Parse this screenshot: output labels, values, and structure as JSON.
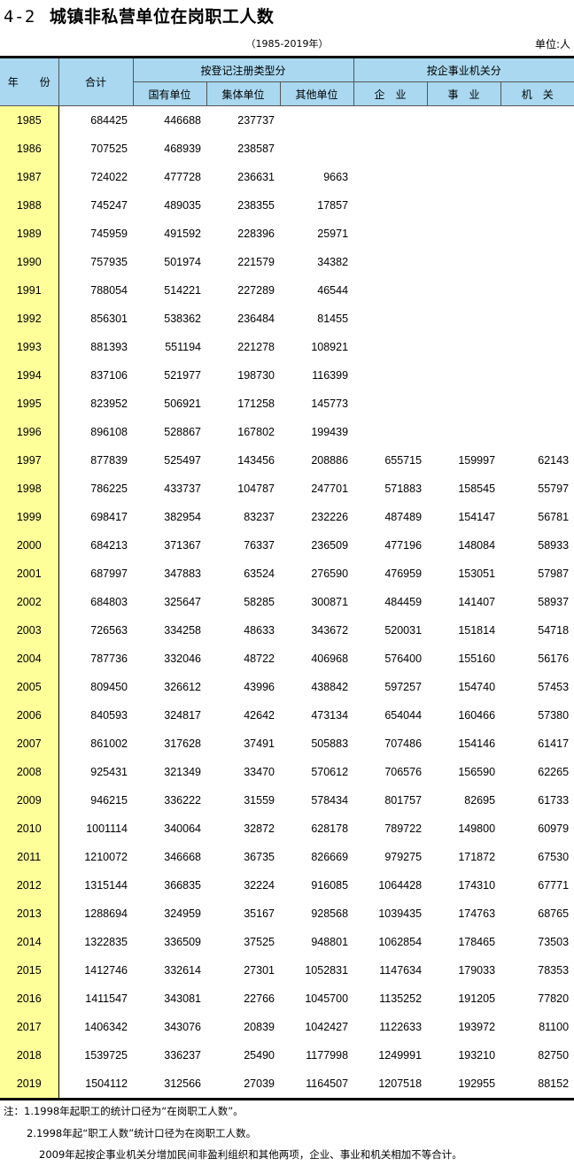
{
  "title": {
    "number": "4-2",
    "text": "城镇非私营单位在岗职工人数"
  },
  "subtitle": "（1985-2019年）",
  "unit": "单位:人",
  "header": {
    "year": "年　　份",
    "total": "合计",
    "group_reg": "按登记注册类型分",
    "group_org": "按企事业机关分",
    "state": "国有单位",
    "collective": "集体单位",
    "other": "其他单位",
    "enterprise": "企　业",
    "institution": "事　业",
    "government": "机　关"
  },
  "colors": {
    "header_bg": "#a9d8f0",
    "year_bg": "#ffff99"
  },
  "rows": [
    [
      "1985",
      "684425",
      "446688",
      "237737",
      "",
      "",
      "",
      ""
    ],
    [
      "1986",
      "707525",
      "468939",
      "238587",
      "",
      "",
      "",
      ""
    ],
    [
      "1987",
      "724022",
      "477728",
      "236631",
      "9663",
      "",
      "",
      ""
    ],
    [
      "1988",
      "745247",
      "489035",
      "238355",
      "17857",
      "",
      "",
      ""
    ],
    [
      "1989",
      "745959",
      "491592",
      "228396",
      "25971",
      "",
      "",
      ""
    ],
    [
      "1990",
      "757935",
      "501974",
      "221579",
      "34382",
      "",
      "",
      ""
    ],
    [
      "1991",
      "788054",
      "514221",
      "227289",
      "46544",
      "",
      "",
      ""
    ],
    [
      "1992",
      "856301",
      "538362",
      "236484",
      "81455",
      "",
      "",
      ""
    ],
    [
      "1993",
      "881393",
      "551194",
      "221278",
      "108921",
      "",
      "",
      ""
    ],
    [
      "1994",
      "837106",
      "521977",
      "198730",
      "116399",
      "",
      "",
      ""
    ],
    [
      "1995",
      "823952",
      "506921",
      "171258",
      "145773",
      "",
      "",
      ""
    ],
    [
      "1996",
      "896108",
      "528867",
      "167802",
      "199439",
      "",
      "",
      ""
    ],
    [
      "1997",
      "877839",
      "525497",
      "143456",
      "208886",
      "655715",
      "159997",
      "62143"
    ],
    [
      "1998",
      "786225",
      "433737",
      "104787",
      "247701",
      "571883",
      "158545",
      "55797"
    ],
    [
      "1999",
      "698417",
      "382954",
      "83237",
      "232226",
      "487489",
      "154147",
      "56781"
    ],
    [
      "2000",
      "684213",
      "371367",
      "76337",
      "236509",
      "477196",
      "148084",
      "58933"
    ],
    [
      "2001",
      "687997",
      "347883",
      "63524",
      "276590",
      "476959",
      "153051",
      "57987"
    ],
    [
      "2002",
      "684803",
      "325647",
      "58285",
      "300871",
      "484459",
      "141407",
      "58937"
    ],
    [
      "2003",
      "726563",
      "334258",
      "48633",
      "343672",
      "520031",
      "151814",
      "54718"
    ],
    [
      "2004",
      "787736",
      "332046",
      "48722",
      "406968",
      "576400",
      "155160",
      "56176"
    ],
    [
      "2005",
      "809450",
      "326612",
      "43996",
      "438842",
      "597257",
      "154740",
      "57453"
    ],
    [
      "2006",
      "840593",
      "324817",
      "42642",
      "473134",
      "654044",
      "160466",
      "57380"
    ],
    [
      "2007",
      "861002",
      "317628",
      "37491",
      "505883",
      "707486",
      "154146",
      "61417"
    ],
    [
      "2008",
      "925431",
      "321349",
      "33470",
      "570612",
      "706576",
      "156590",
      "62265"
    ],
    [
      "2009",
      "946215",
      "336222",
      "31559",
      "578434",
      "801757",
      "82695",
      "61733"
    ],
    [
      "2010",
      "1001114",
      "340064",
      "32872",
      "628178",
      "789722",
      "149800",
      "60979"
    ],
    [
      "2011",
      "1210072",
      "346668",
      "36735",
      "826669",
      "979275",
      "171872",
      "67530"
    ],
    [
      "2012",
      "1315144",
      "366835",
      "32224",
      "916085",
      "1064428",
      "174310",
      "67771"
    ],
    [
      "2013",
      "1288694",
      "324959",
      "35167",
      "928568",
      "1039435",
      "174763",
      "68765"
    ],
    [
      "2014",
      "1322835",
      "336509",
      "37525",
      "948801",
      "1062854",
      "178465",
      "73503"
    ],
    [
      "2015",
      "1412746",
      "332614",
      "27301",
      "1052831",
      "1147634",
      "179033",
      "78353"
    ],
    [
      "2016",
      "1411547",
      "343081",
      "22766",
      "1045700",
      "1135252",
      "191205",
      "77820"
    ],
    [
      "2017",
      "1406342",
      "343076",
      "20839",
      "1042427",
      "1122633",
      "193972",
      "81100"
    ],
    [
      "2018",
      "1539725",
      "336237",
      "25490",
      "1177998",
      "1249991",
      "193210",
      "82750"
    ],
    [
      "2019",
      "1504112",
      "312566",
      "27039",
      "1164507",
      "1207518",
      "192955",
      "88152"
    ]
  ],
  "notes": [
    "注：1.1998年起职工的统计口径为“在岗职工人数”。",
    "2.1998年起“职工人数”统计口径为在岗职工人数。",
    "2009年起按企事业机关分增加民间非盈利组织和其他两项，企业、事业和机关相加不等合计。"
  ]
}
